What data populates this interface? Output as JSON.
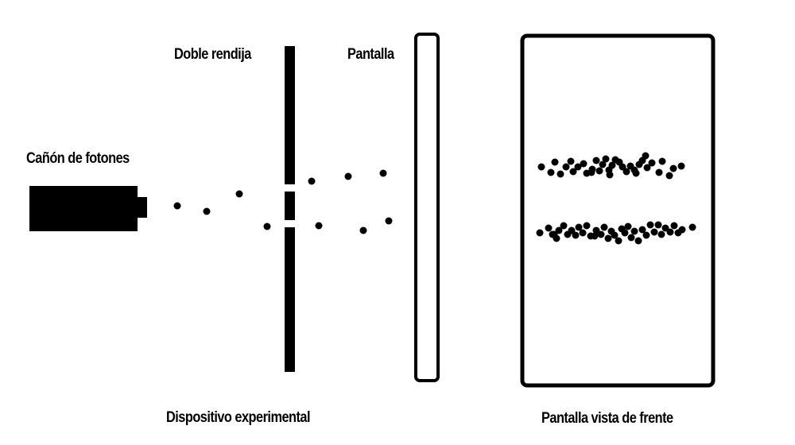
{
  "labels": {
    "photon_cannon": "Cañón de fotones",
    "double_slit": "Doble rendija",
    "screen": "Pantalla",
    "experimental_setup": "Dispositivo experimental",
    "screen_front_view": "Pantalla vista de frente"
  },
  "colors": {
    "ink": "#000000",
    "background": "#ffffff"
  }
}
